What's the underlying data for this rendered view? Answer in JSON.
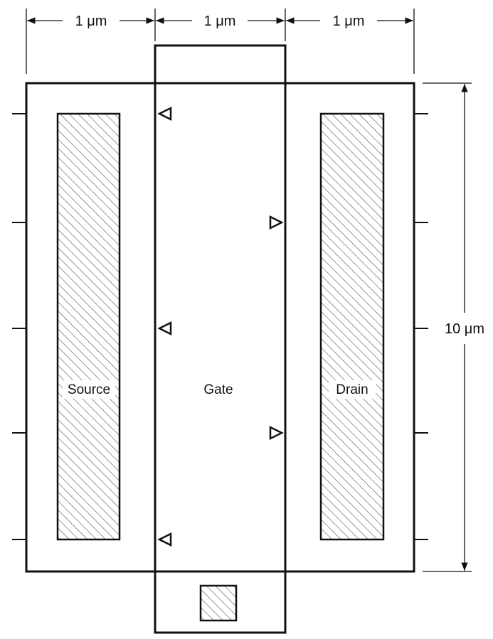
{
  "labels": {
    "source": "Source",
    "gate": "Gate",
    "drain": "Drain"
  },
  "dimensions": {
    "source_width": "1 μm",
    "gate_width": "1 μm",
    "drain_width": "1 μm",
    "height": "10 μm"
  },
  "colors": {
    "stroke": "#111111",
    "hatch": "#555555",
    "background": "#ffffff"
  },
  "icons": {
    "gate_markers": "triangle-marker-icon",
    "gate_contact": "hatched-square-icon"
  }
}
